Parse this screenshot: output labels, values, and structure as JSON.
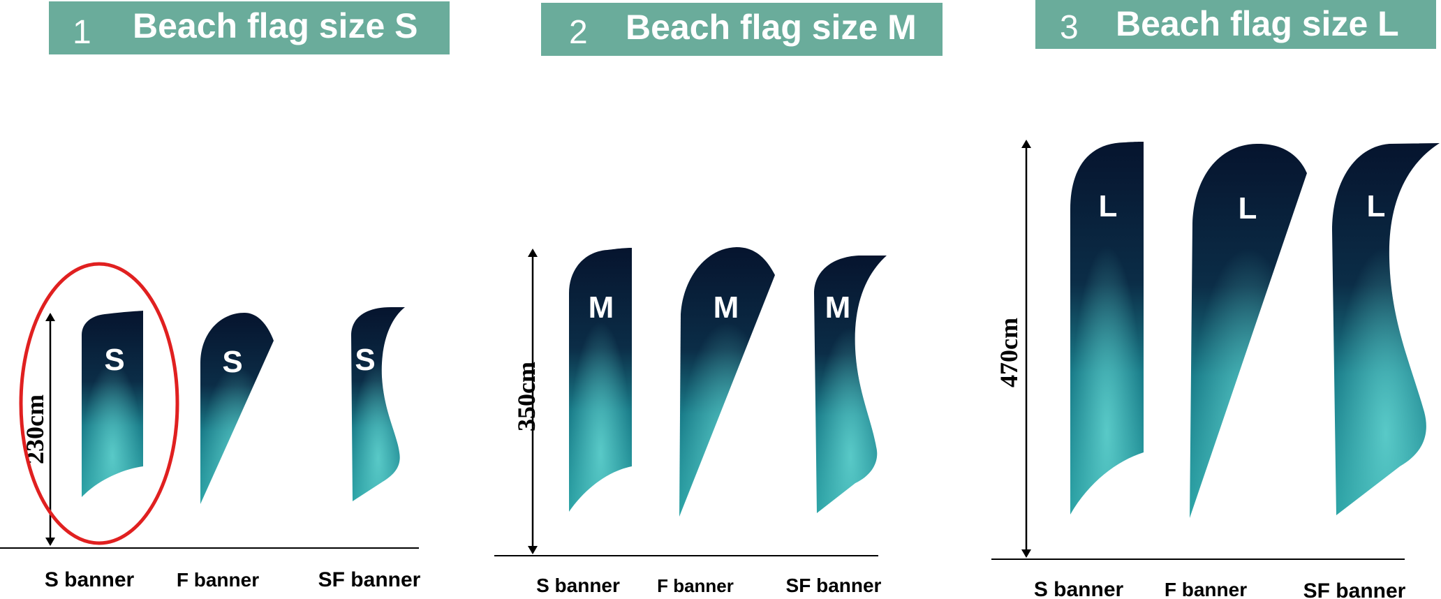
{
  "colors": {
    "header_bg": "#6aac9b",
    "flag_top": "#06142e",
    "flag_bottom": "#5fd0cd",
    "highlight": "#e02020",
    "text": "#000000"
  },
  "sizes": [
    {
      "number": "1",
      "title": "Beach flag size S",
      "letter": "S",
      "height_label": "230cm",
      "banners": [
        "S banner",
        "F banner",
        "SF banner"
      ],
      "highlighted": "S banner"
    },
    {
      "number": "2",
      "title": "Beach flag size M",
      "letter": "M",
      "height_label": "350cm",
      "banners": [
        "S banner",
        "F banner",
        "SF banner"
      ]
    },
    {
      "number": "3",
      "title": "Beach flag size L",
      "letter": "L",
      "height_label": "470cm",
      "banners": [
        "S banner",
        "F banner",
        "SF banner"
      ]
    }
  ]
}
